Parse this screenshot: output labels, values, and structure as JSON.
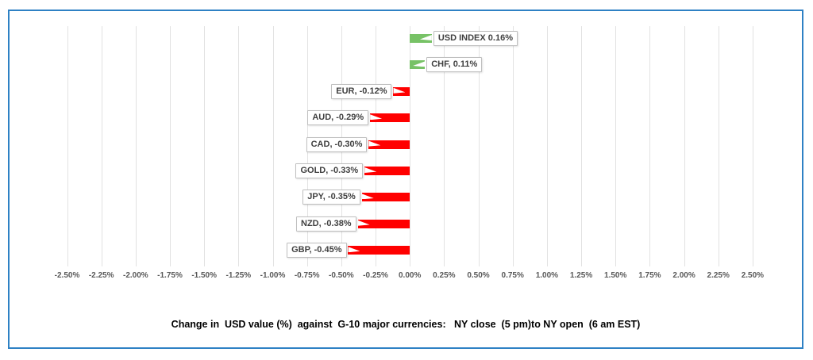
{
  "window": {
    "background": "#FFFFFF",
    "frame_border_color": "#2E81C4"
  },
  "chart_data": {
    "type": "bar",
    "orientation": "horizontal",
    "title": "Change in  USD value (%)  against  G-10 major currencies:   NY close  (5 pm)to NY open  (6 am EST)",
    "categories": [
      "USD INDEX",
      "CHF",
      "EUR",
      "AUD",
      "CAD",
      "GOLD",
      "JPY",
      "NZD",
      "GBP"
    ],
    "values": [
      0.16,
      0.11,
      -0.12,
      -0.29,
      -0.3,
      -0.33,
      -0.35,
      -0.38,
      -0.45
    ],
    "data_labels": [
      "USD INDEX 0.16%",
      "CHF, 0.11%",
      "EUR, -0.12%",
      "AUD, -0.29%",
      "CAD, -0.30%",
      "GOLD, -0.33%",
      "JPY, -0.35%",
      "NZD, -0.38%",
      "GBP, -0.45%"
    ],
    "xlabel": "",
    "ylabel": "",
    "xlim": [
      -2.5,
      2.5
    ],
    "x_tick_step": 0.25,
    "x_tick_labels": [
      "-2.50%",
      "-2.25%",
      "-2.00%",
      "-1.75%",
      "-1.50%",
      "-1.25%",
      "-1.00%",
      "-0.75%",
      "-0.50%",
      "-0.25%",
      "0.00%",
      "0.25%",
      "0.50%",
      "0.75%",
      "1.00%",
      "1.25%",
      "1.50%",
      "1.75%",
      "2.00%",
      "2.25%",
      "2.50%"
    ],
    "grid": true,
    "legend": "none",
    "colors": {
      "positive_bar": "#77C266",
      "negative_bar": "#FF0000",
      "gridline": "#E2E2E2",
      "tick_label": "#595959",
      "data_label_text": "#3F3F3F",
      "data_label_border": "#BFBFBF",
      "title_text": "#000000"
    }
  }
}
